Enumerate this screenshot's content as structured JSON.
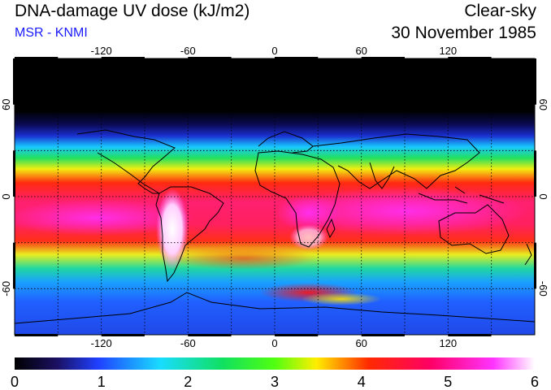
{
  "header": {
    "title": "DNA-damage UV dose (kJ/m2)",
    "subtitle": "MSR - KNMI",
    "sky_condition": "Clear-sky",
    "date": "30 November 1985"
  },
  "map": {
    "projection": "equirectangular",
    "longitude_range": [
      -180,
      180
    ],
    "latitude_range": [
      -90,
      90
    ],
    "longitude_ticks": [
      "-120",
      "-60",
      "0",
      "60",
      "120"
    ],
    "latitude_ticks": [
      "60",
      "0",
      "-60"
    ],
    "graticule": "dotted 30° grid",
    "colors": {
      "frame": "#000000",
      "coastline": "#000000",
      "night_polar": "#000000"
    }
  },
  "colorbar": {
    "labels": [
      "0",
      "1",
      "2",
      "3",
      "4",
      "5",
      "6"
    ],
    "min": 0,
    "max": 6,
    "stops": [
      "#000000",
      "#2a1aa0",
      "#2050ff",
      "#19dcff",
      "#10e060",
      "#50ff10",
      "#ffee00",
      "#ff2a00",
      "#ff0066",
      "#ff22ff",
      "#ffffff"
    ]
  }
}
